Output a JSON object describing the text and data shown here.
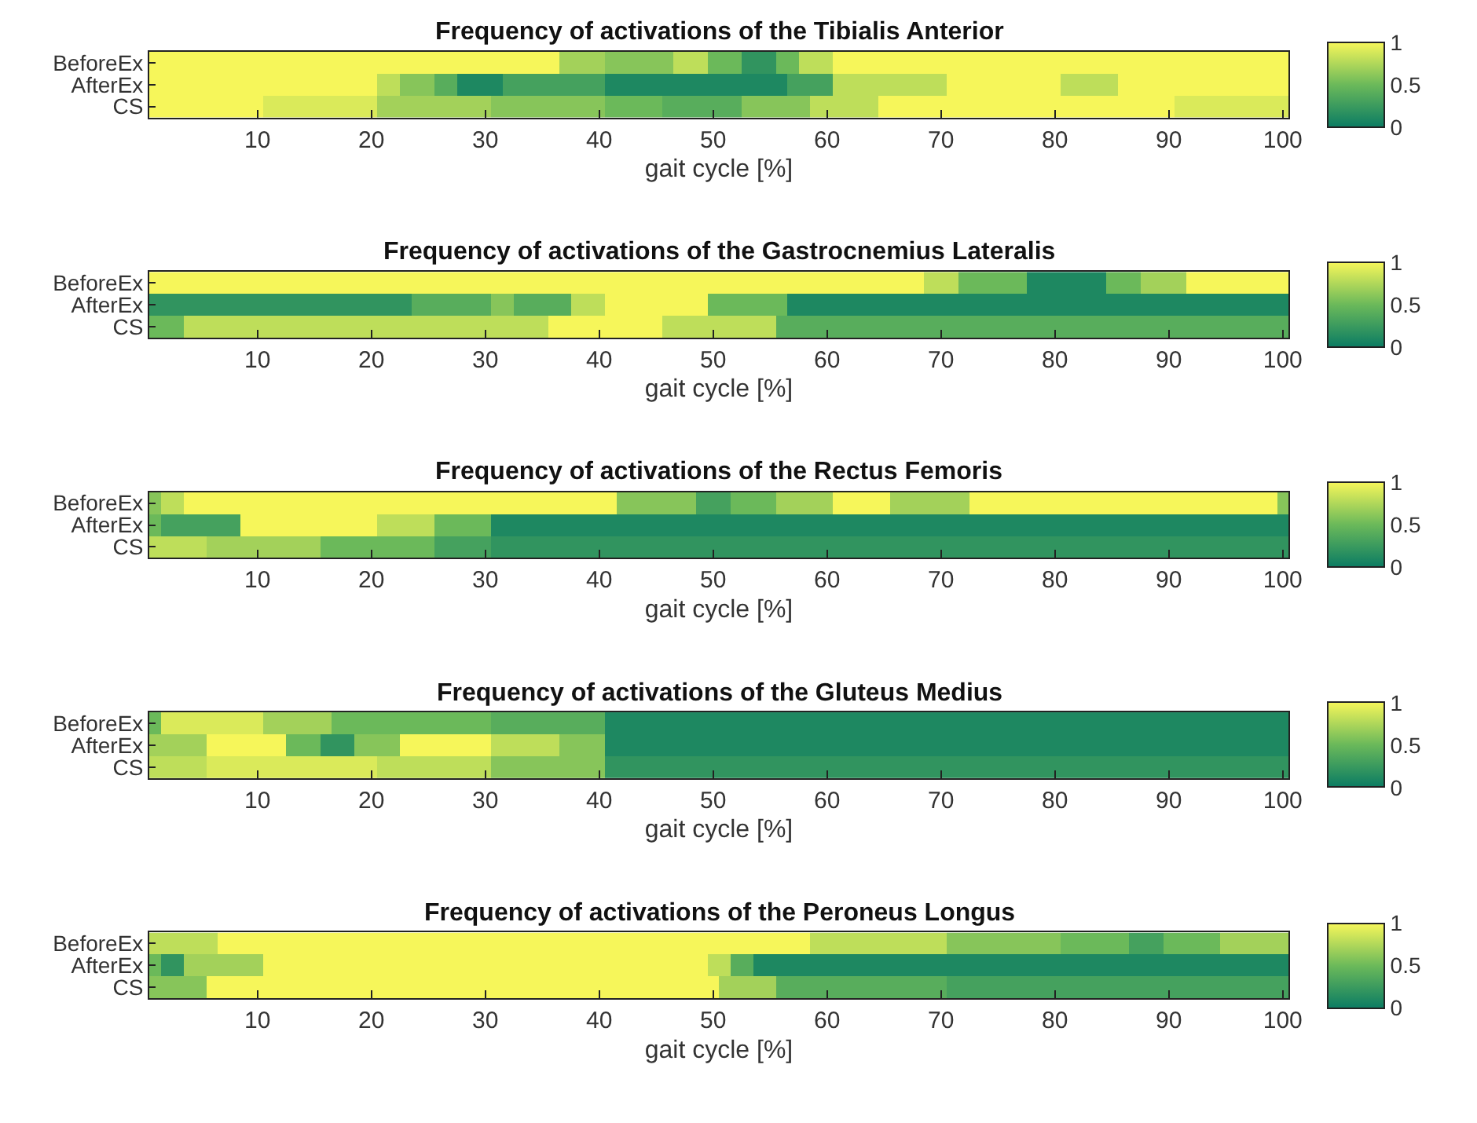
{
  "chart_data": [
    {
      "type": "heatmap",
      "title": "Frequency of activations of the Tibialis Anterior",
      "xlabel": "gait cycle [%]",
      "x": [
        1,
        2,
        3,
        4,
        5,
        6,
        7,
        8,
        9,
        10,
        11,
        12,
        13,
        14,
        15,
        16,
        17,
        18,
        19,
        20,
        21,
        22,
        23,
        24,
        25,
        26,
        27,
        28,
        29,
        30,
        31,
        32,
        33,
        34,
        35,
        36,
        37,
        38,
        39,
        40,
        41,
        42,
        43,
        44,
        45,
        46,
        47,
        48,
        49,
        50,
        51,
        52,
        53,
        54,
        55,
        56,
        57,
        58,
        59,
        60,
        61,
        62,
        63,
        64,
        65,
        66,
        67,
        68,
        69,
        70,
        71,
        72,
        73,
        74,
        75,
        76,
        77,
        78,
        79,
        80,
        81,
        82,
        83,
        84,
        85,
        86,
        87,
        88,
        89,
        90,
        91,
        92,
        93,
        94,
        95,
        96,
        97,
        98,
        99,
        100
      ],
      "y_categories": [
        "BeforeEx",
        "AfterEx",
        "CS"
      ],
      "cells": [
        [
          1,
          1,
          1,
          1,
          1,
          1,
          1,
          1,
          1,
          1,
          1,
          1,
          1,
          1,
          1,
          1,
          1,
          1,
          1,
          1,
          1,
          1,
          1,
          1,
          1,
          1,
          1,
          1,
          1,
          1,
          1,
          1,
          1,
          1,
          1,
          1,
          0.7,
          0.7,
          0.7,
          0.7,
          0.6,
          0.6,
          0.6,
          0.6,
          0.6,
          0.6,
          0.8,
          0.8,
          0.8,
          0.5,
          0.5,
          0.5,
          0.2,
          0.2,
          0.2,
          0.5,
          0.5,
          0.8,
          0.8,
          0.8,
          1,
          1,
          1,
          1,
          1,
          1,
          1,
          1,
          1,
          1,
          1,
          1,
          1,
          1,
          1,
          1,
          1,
          1,
          1,
          1,
          1,
          1,
          1,
          1,
          1,
          1,
          1,
          1,
          1,
          1,
          1,
          1,
          1,
          1,
          1,
          1,
          1,
          1,
          1,
          1
        ],
        [
          1,
          1,
          1,
          1,
          1,
          1,
          1,
          1,
          1,
          1,
          1,
          1,
          1,
          1,
          1,
          1,
          1,
          1,
          1,
          1,
          0.8,
          0.8,
          0.6,
          0.6,
          0.6,
          0.4,
          0.4,
          0.1,
          0.1,
          0.1,
          0.1,
          0.3,
          0.3,
          0.3,
          0.3,
          0.3,
          0.3,
          0.3,
          0.3,
          0.3,
          0.1,
          0.1,
          0.1,
          0.1,
          0.1,
          0.1,
          0.1,
          0.1,
          0.1,
          0.1,
          0.1,
          0.1,
          0.1,
          0.1,
          0.1,
          0.1,
          0.3,
          0.3,
          0.3,
          0.3,
          0.8,
          0.8,
          0.8,
          0.8,
          0.8,
          0.8,
          0.8,
          0.8,
          0.8,
          0.8,
          1,
          1,
          1,
          1,
          1,
          1,
          1,
          1,
          1,
          1,
          0.8,
          0.8,
          0.8,
          0.8,
          0.8,
          1,
          1,
          1,
          1,
          1,
          1,
          1,
          1,
          1,
          1,
          1,
          1,
          1,
          1,
          1
        ],
        [
          1,
          1,
          1,
          1,
          1,
          1,
          1,
          1,
          1,
          1,
          0.9,
          0.9,
          0.9,
          0.9,
          0.9,
          0.9,
          0.9,
          0.9,
          0.9,
          0.9,
          0.7,
          0.7,
          0.7,
          0.7,
          0.7,
          0.7,
          0.7,
          0.7,
          0.7,
          0.7,
          0.6,
          0.6,
          0.6,
          0.6,
          0.6,
          0.6,
          0.6,
          0.6,
          0.6,
          0.6,
          0.5,
          0.5,
          0.5,
          0.5,
          0.5,
          0.4,
          0.4,
          0.4,
          0.4,
          0.4,
          0.4,
          0.4,
          0.6,
          0.6,
          0.6,
          0.6,
          0.6,
          0.6,
          0.8,
          0.8,
          0.8,
          0.8,
          0.8,
          0.8,
          1,
          1,
          1,
          1,
          1,
          1,
          1,
          1,
          1,
          1,
          1,
          1,
          1,
          1,
          1,
          1,
          1,
          1,
          1,
          1,
          1,
          1,
          1,
          1,
          1,
          1,
          0.9,
          0.9,
          0.9,
          0.9,
          0.9,
          0.9,
          0.9,
          0.9,
          0.9,
          0.9
        ]
      ],
      "xlim": [
        0.5,
        100.5
      ],
      "xticks": [
        10,
        20,
        30,
        40,
        50,
        60,
        70,
        80,
        90,
        100
      ],
      "clim": [
        0,
        1
      ],
      "cticks": [
        0,
        0.5,
        1
      ]
    },
    {
      "type": "heatmap",
      "title": "Frequency of activations of the Gastrocnemius Lateralis",
      "xlabel": "gait cycle [%]",
      "x": [
        1,
        2,
        3,
        4,
        5,
        6,
        7,
        8,
        9,
        10,
        11,
        12,
        13,
        14,
        15,
        16,
        17,
        18,
        19,
        20,
        21,
        22,
        23,
        24,
        25,
        26,
        27,
        28,
        29,
        30,
        31,
        32,
        33,
        34,
        35,
        36,
        37,
        38,
        39,
        40,
        41,
        42,
        43,
        44,
        45,
        46,
        47,
        48,
        49,
        50,
        51,
        52,
        53,
        54,
        55,
        56,
        57,
        58,
        59,
        60,
        61,
        62,
        63,
        64,
        65,
        66,
        67,
        68,
        69,
        70,
        71,
        72,
        73,
        74,
        75,
        76,
        77,
        78,
        79,
        80,
        81,
        82,
        83,
        84,
        85,
        86,
        87,
        88,
        89,
        90,
        91,
        92,
        93,
        94,
        95,
        96,
        97,
        98,
        99,
        100
      ],
      "y_categories": [
        "BeforeEx",
        "AfterEx",
        "CS"
      ],
      "cells": [
        [
          1,
          1,
          1,
          1,
          1,
          1,
          1,
          1,
          1,
          1,
          1,
          1,
          1,
          1,
          1,
          1,
          1,
          1,
          1,
          1,
          1,
          1,
          1,
          1,
          1,
          1,
          1,
          1,
          1,
          1,
          1,
          1,
          1,
          1,
          1,
          1,
          1,
          1,
          1,
          1,
          1,
          1,
          1,
          1,
          1,
          1,
          1,
          1,
          1,
          1,
          1,
          1,
          1,
          1,
          1,
          1,
          1,
          1,
          1,
          1,
          1,
          1,
          1,
          1,
          1,
          1,
          1,
          1,
          0.8,
          0.8,
          0.8,
          0.5,
          0.5,
          0.5,
          0.5,
          0.5,
          0.5,
          0.1,
          0.1,
          0.1,
          0.1,
          0.1,
          0.1,
          0.1,
          0.5,
          0.5,
          0.5,
          0.7,
          0.7,
          0.7,
          0.7,
          1,
          1,
          1,
          1,
          1,
          1,
          1,
          1,
          1
        ],
        [
          0.2,
          0.2,
          0.2,
          0.2,
          0.2,
          0.2,
          0.2,
          0.2,
          0.2,
          0.2,
          0.2,
          0.2,
          0.2,
          0.2,
          0.2,
          0.2,
          0.2,
          0.2,
          0.2,
          0.2,
          0.2,
          0.2,
          0.2,
          0.4,
          0.4,
          0.4,
          0.4,
          0.4,
          0.4,
          0.4,
          0.6,
          0.6,
          0.4,
          0.4,
          0.4,
          0.4,
          0.4,
          0.8,
          0.8,
          0.8,
          1,
          1,
          1,
          1,
          1,
          1,
          1,
          1,
          1,
          0.5,
          0.5,
          0.5,
          0.5,
          0.5,
          0.5,
          0.5,
          0.1,
          0.1,
          0.1,
          0.1,
          0.1,
          0.1,
          0.1,
          0.1,
          0.1,
          0.1,
          0.1,
          0.1,
          0.1,
          0.1,
          0.1,
          0.1,
          0.1,
          0.1,
          0.1,
          0.1,
          0.1,
          0.1,
          0.1,
          0.1,
          0.1,
          0.1,
          0.1,
          0.1,
          0.1,
          0.1,
          0.1,
          0.1,
          0.1,
          0.1,
          0.1,
          0.1,
          0.1,
          0.1,
          0.1,
          0.1,
          0.1,
          0.1,
          0.1,
          0.1
        ],
        [
          0.5,
          0.5,
          0.5,
          0.8,
          0.8,
          0.8,
          0.8,
          0.8,
          0.8,
          0.8,
          0.8,
          0.8,
          0.8,
          0.8,
          0.8,
          0.8,
          0.8,
          0.8,
          0.8,
          0.8,
          0.8,
          0.8,
          0.8,
          0.8,
          0.8,
          0.8,
          0.8,
          0.8,
          0.8,
          0.8,
          0.8,
          0.8,
          0.8,
          0.8,
          0.8,
          1,
          1,
          1,
          1,
          1,
          1,
          1,
          1,
          1,
          1,
          0.8,
          0.8,
          0.8,
          0.8,
          0.8,
          0.8,
          0.8,
          0.8,
          0.8,
          0.8,
          0.4,
          0.4,
          0.4,
          0.4,
          0.4,
          0.4,
          0.4,
          0.4,
          0.4,
          0.4,
          0.4,
          0.4,
          0.4,
          0.4,
          0.4,
          0.4,
          0.4,
          0.4,
          0.4,
          0.4,
          0.4,
          0.4,
          0.4,
          0.4,
          0.4,
          0.4,
          0.4,
          0.4,
          0.4,
          0.4,
          0.4,
          0.4,
          0.4,
          0.4,
          0.4,
          0.4,
          0.4,
          0.4,
          0.4,
          0.4,
          0.4,
          0.4,
          0.4,
          0.4,
          0.4
        ]
      ],
      "xlim": [
        0.5,
        100.5
      ],
      "xticks": [
        10,
        20,
        30,
        40,
        50,
        60,
        70,
        80,
        90,
        100
      ],
      "clim": [
        0,
        1
      ],
      "cticks": [
        0,
        0.5,
        1
      ]
    },
    {
      "type": "heatmap",
      "title": "Frequency of activations of the Rectus Femoris",
      "xlabel": "gait cycle [%]",
      "x": [
        1,
        2,
        3,
        4,
        5,
        6,
        7,
        8,
        9,
        10,
        11,
        12,
        13,
        14,
        15,
        16,
        17,
        18,
        19,
        20,
        21,
        22,
        23,
        24,
        25,
        26,
        27,
        28,
        29,
        30,
        31,
        32,
        33,
        34,
        35,
        36,
        37,
        38,
        39,
        40,
        41,
        42,
        43,
        44,
        45,
        46,
        47,
        48,
        49,
        50,
        51,
        52,
        53,
        54,
        55,
        56,
        57,
        58,
        59,
        60,
        61,
        62,
        63,
        64,
        65,
        66,
        67,
        68,
        69,
        70,
        71,
        72,
        73,
        74,
        75,
        76,
        77,
        78,
        79,
        80,
        81,
        82,
        83,
        84,
        85,
        86,
        87,
        88,
        89,
        90,
        91,
        92,
        93,
        94,
        95,
        96,
        97,
        98,
        99,
        100
      ],
      "y_categories": [
        "BeforeEx",
        "AfterEx",
        "CS"
      ],
      "cells": [
        [
          0.6,
          0.8,
          0.8,
          1,
          1,
          1,
          1,
          1,
          1,
          1,
          1,
          1,
          1,
          1,
          1,
          1,
          1,
          1,
          1,
          1,
          1,
          1,
          1,
          1,
          1,
          1,
          1,
          1,
          1,
          1,
          1,
          1,
          1,
          1,
          1,
          1,
          1,
          1,
          1,
          1,
          1,
          0.6,
          0.6,
          0.6,
          0.6,
          0.6,
          0.6,
          0.6,
          0.3,
          0.3,
          0.3,
          0.5,
          0.5,
          0.5,
          0.5,
          0.7,
          0.7,
          0.7,
          0.7,
          0.7,
          1,
          1,
          1,
          1,
          1,
          0.7,
          0.7,
          0.7,
          0.7,
          0.7,
          0.7,
          0.7,
          1,
          1,
          1,
          1,
          1,
          1,
          1,
          1,
          1,
          1,
          1,
          1,
          1,
          1,
          1,
          1,
          1,
          1,
          1,
          1,
          1,
          1,
          1,
          1,
          1,
          1,
          1,
          0.6
        ],
        [
          0.5,
          0.3,
          0.3,
          0.3,
          0.3,
          0.3,
          0.3,
          0.3,
          1,
          1,
          1,
          1,
          1,
          1,
          1,
          1,
          1,
          1,
          1,
          1,
          0.8,
          0.8,
          0.8,
          0.8,
          0.8,
          0.5,
          0.5,
          0.5,
          0.5,
          0.5,
          0.1,
          0.1,
          0.1,
          0.1,
          0.1,
          0.1,
          0.1,
          0.1,
          0.1,
          0.1,
          0.1,
          0.1,
          0.1,
          0.1,
          0.1,
          0.1,
          0.1,
          0.1,
          0.1,
          0.1,
          0.1,
          0.1,
          0.1,
          0.1,
          0.1,
          0.1,
          0.1,
          0.1,
          0.1,
          0.1,
          0.1,
          0.1,
          0.1,
          0.1,
          0.1,
          0.1,
          0.1,
          0.1,
          0.1,
          0.1,
          0.1,
          0.1,
          0.1,
          0.1,
          0.1,
          0.1,
          0.1,
          0.1,
          0.1,
          0.1,
          0.1,
          0.1,
          0.1,
          0.1,
          0.1,
          0.1,
          0.1,
          0.1,
          0.1,
          0.1,
          0.1,
          0.1,
          0.1,
          0.1,
          0.1,
          0.1,
          0.1,
          0.1,
          0.1,
          0.1
        ],
        [
          0.8,
          0.8,
          0.8,
          0.8,
          0.8,
          0.7,
          0.7,
          0.7,
          0.7,
          0.7,
          0.7,
          0.7,
          0.7,
          0.7,
          0.7,
          0.5,
          0.5,
          0.5,
          0.5,
          0.5,
          0.5,
          0.5,
          0.5,
          0.5,
          0.5,
          0.3,
          0.3,
          0.3,
          0.3,
          0.3,
          0.2,
          0.2,
          0.2,
          0.2,
          0.2,
          0.2,
          0.2,
          0.2,
          0.2,
          0.2,
          0.2,
          0.2,
          0.2,
          0.2,
          0.2,
          0.2,
          0.2,
          0.2,
          0.2,
          0.2,
          0.2,
          0.2,
          0.2,
          0.2,
          0.2,
          0.2,
          0.2,
          0.2,
          0.2,
          0.2,
          0.2,
          0.2,
          0.2,
          0.2,
          0.2,
          0.2,
          0.2,
          0.2,
          0.2,
          0.2,
          0.2,
          0.2,
          0.2,
          0.2,
          0.2,
          0.2,
          0.2,
          0.2,
          0.2,
          0.2,
          0.2,
          0.2,
          0.2,
          0.2,
          0.2,
          0.2,
          0.2,
          0.2,
          0.2,
          0.2,
          0.2,
          0.2,
          0.2,
          0.2,
          0.2,
          0.2,
          0.2,
          0.2,
          0.2,
          0.2
        ]
      ],
      "xlim": [
        0.5,
        100.5
      ],
      "xticks": [
        10,
        20,
        30,
        40,
        50,
        60,
        70,
        80,
        90,
        100
      ],
      "clim": [
        0,
        1
      ],
      "cticks": [
        0,
        0.5,
        1
      ]
    },
    {
      "type": "heatmap",
      "title": "Frequency of activations of the Gluteus Medius",
      "xlabel": "gait cycle [%]",
      "x": [
        1,
        2,
        3,
        4,
        5,
        6,
        7,
        8,
        9,
        10,
        11,
        12,
        13,
        14,
        15,
        16,
        17,
        18,
        19,
        20,
        21,
        22,
        23,
        24,
        25,
        26,
        27,
        28,
        29,
        30,
        31,
        32,
        33,
        34,
        35,
        36,
        37,
        38,
        39,
        40,
        41,
        42,
        43,
        44,
        45,
        46,
        47,
        48,
        49,
        50,
        51,
        52,
        53,
        54,
        55,
        56,
        57,
        58,
        59,
        60,
        61,
        62,
        63,
        64,
        65,
        66,
        67,
        68,
        69,
        70,
        71,
        72,
        73,
        74,
        75,
        76,
        77,
        78,
        79,
        80,
        81,
        82,
        83,
        84,
        85,
        86,
        87,
        88,
        89,
        90,
        91,
        92,
        93,
        94,
        95,
        96,
        97,
        98,
        99,
        100
      ],
      "y_categories": [
        "BeforeEx",
        "AfterEx",
        "CS"
      ],
      "cells": [
        [
          0.5,
          0.9,
          0.9,
          0.9,
          0.9,
          0.9,
          0.9,
          0.9,
          0.9,
          0.9,
          0.7,
          0.7,
          0.7,
          0.7,
          0.7,
          0.7,
          0.5,
          0.5,
          0.5,
          0.5,
          0.5,
          0.5,
          0.5,
          0.5,
          0.5,
          0.5,
          0.5,
          0.5,
          0.5,
          0.5,
          0.4,
          0.4,
          0.4,
          0.4,
          0.4,
          0.4,
          0.4,
          0.4,
          0.4,
          0.4,
          0.1,
          0.1,
          0.1,
          0.1,
          0.1,
          0.1,
          0.1,
          0.1,
          0.1,
          0.1,
          0.1,
          0.1,
          0.1,
          0.1,
          0.1,
          0.1,
          0.1,
          0.1,
          0.1,
          0.1,
          0.1,
          0.1,
          0.1,
          0.1,
          0.1,
          0.1,
          0.1,
          0.1,
          0.1,
          0.1,
          0.1,
          0.1,
          0.1,
          0.1,
          0.1,
          0.1,
          0.1,
          0.1,
          0.1,
          0.1,
          0.1,
          0.1,
          0.1,
          0.1,
          0.1,
          0.1,
          0.1,
          0.1,
          0.1,
          0.1,
          0.1,
          0.1,
          0.1,
          0.1,
          0.1,
          0.1,
          0.1,
          0.1,
          0.1,
          0.1
        ],
        [
          0.7,
          0.7,
          0.7,
          0.7,
          0.7,
          1,
          1,
          1,
          1,
          1,
          1,
          1,
          0.5,
          0.5,
          0.5,
          0.2,
          0.2,
          0.2,
          0.6,
          0.6,
          0.6,
          0.6,
          1,
          1,
          1,
          1,
          1,
          1,
          1,
          1,
          0.8,
          0.8,
          0.8,
          0.8,
          0.8,
          0.8,
          0.6,
          0.6,
          0.6,
          0.6,
          0.1,
          0.1,
          0.1,
          0.1,
          0.1,
          0.1,
          0.1,
          0.1,
          0.1,
          0.1,
          0.1,
          0.1,
          0.1,
          0.1,
          0.1,
          0.1,
          0.1,
          0.1,
          0.1,
          0.1,
          0.1,
          0.1,
          0.1,
          0.1,
          0.1,
          0.1,
          0.1,
          0.1,
          0.1,
          0.1,
          0.1,
          0.1,
          0.1,
          0.1,
          0.1,
          0.1,
          0.1,
          0.1,
          0.1,
          0.1,
          0.1,
          0.1,
          0.1,
          0.1,
          0.1,
          0.1,
          0.1,
          0.1,
          0.1,
          0.1,
          0.1,
          0.1,
          0.1,
          0.1,
          0.1,
          0.1,
          0.1,
          0.1,
          0.1,
          0.1
        ],
        [
          0.8,
          0.8,
          0.8,
          0.8,
          0.8,
          0.9,
          0.9,
          0.9,
          0.9,
          0.9,
          0.9,
          0.9,
          0.9,
          0.9,
          0.9,
          0.9,
          0.9,
          0.9,
          0.9,
          0.9,
          0.8,
          0.8,
          0.8,
          0.8,
          0.8,
          0.8,
          0.8,
          0.8,
          0.8,
          0.8,
          0.6,
          0.6,
          0.6,
          0.6,
          0.6,
          0.6,
          0.6,
          0.6,
          0.6,
          0.6,
          0.2,
          0.2,
          0.2,
          0.2,
          0.2,
          0.2,
          0.2,
          0.2,
          0.2,
          0.2,
          0.2,
          0.2,
          0.2,
          0.2,
          0.2,
          0.2,
          0.2,
          0.2,
          0.2,
          0.2,
          0.2,
          0.2,
          0.2,
          0.2,
          0.2,
          0.2,
          0.2,
          0.2,
          0.2,
          0.2,
          0.2,
          0.2,
          0.2,
          0.2,
          0.2,
          0.2,
          0.2,
          0.2,
          0.2,
          0.2,
          0.2,
          0.2,
          0.2,
          0.2,
          0.2,
          0.2,
          0.2,
          0.2,
          0.2,
          0.2,
          0.2,
          0.2,
          0.2,
          0.2,
          0.2,
          0.2,
          0.2,
          0.2,
          0.2,
          0.2
        ]
      ],
      "xlim": [
        0.5,
        100.5
      ],
      "xticks": [
        10,
        20,
        30,
        40,
        50,
        60,
        70,
        80,
        90,
        100
      ],
      "clim": [
        0,
        1
      ],
      "cticks": [
        0,
        0.5,
        1
      ]
    },
    {
      "type": "heatmap",
      "title": "Frequency of activations of the Peroneus Longus",
      "xlabel": "gait cycle [%]",
      "x": [
        1,
        2,
        3,
        4,
        5,
        6,
        7,
        8,
        9,
        10,
        11,
        12,
        13,
        14,
        15,
        16,
        17,
        18,
        19,
        20,
        21,
        22,
        23,
        24,
        25,
        26,
        27,
        28,
        29,
        30,
        31,
        32,
        33,
        34,
        35,
        36,
        37,
        38,
        39,
        40,
        41,
        42,
        43,
        44,
        45,
        46,
        47,
        48,
        49,
        50,
        51,
        52,
        53,
        54,
        55,
        56,
        57,
        58,
        59,
        60,
        61,
        62,
        63,
        64,
        65,
        66,
        67,
        68,
        69,
        70,
        71,
        72,
        73,
        74,
        75,
        76,
        77,
        78,
        79,
        80,
        81,
        82,
        83,
        84,
        85,
        86,
        87,
        88,
        89,
        90,
        91,
        92,
        93,
        94,
        95,
        96,
        97,
        98,
        99,
        100
      ],
      "y_categories": [
        "BeforeEx",
        "AfterEx",
        "CS"
      ],
      "cells": [
        [
          0.8,
          0.8,
          0.8,
          0.8,
          0.8,
          0.8,
          1,
          1,
          1,
          1,
          1,
          1,
          1,
          1,
          1,
          1,
          1,
          1,
          1,
          1,
          1,
          1,
          1,
          1,
          1,
          1,
          1,
          1,
          1,
          1,
          1,
          1,
          1,
          1,
          1,
          1,
          1,
          1,
          1,
          1,
          1,
          1,
          1,
          1,
          1,
          1,
          1,
          1,
          1,
          1,
          1,
          1,
          1,
          1,
          1,
          1,
          1,
          1,
          0.8,
          0.8,
          0.8,
          0.8,
          0.8,
          0.8,
          0.8,
          0.8,
          0.8,
          0.8,
          0.8,
          0.8,
          0.6,
          0.6,
          0.6,
          0.6,
          0.6,
          0.6,
          0.6,
          0.6,
          0.6,
          0.6,
          0.5,
          0.5,
          0.5,
          0.5,
          0.5,
          0.5,
          0.3,
          0.3,
          0.3,
          0.5,
          0.5,
          0.5,
          0.5,
          0.5,
          0.7,
          0.7,
          0.7,
          0.7,
          0.7,
          0.7
        ],
        [
          0.5,
          0.2,
          0.2,
          0.7,
          0.7,
          0.7,
          0.7,
          0.7,
          0.7,
          0.7,
          1,
          1,
          1,
          1,
          1,
          1,
          1,
          1,
          1,
          1,
          1,
          1,
          1,
          1,
          1,
          1,
          1,
          1,
          1,
          1,
          1,
          1,
          1,
          1,
          1,
          1,
          1,
          1,
          1,
          1,
          1,
          1,
          1,
          1,
          1,
          1,
          1,
          1,
          1,
          0.8,
          0.8,
          0.4,
          0.4,
          0.1,
          0.1,
          0.1,
          0.1,
          0.1,
          0.1,
          0.1,
          0.1,
          0.1,
          0.1,
          0.1,
          0.1,
          0.1,
          0.1,
          0.1,
          0.1,
          0.1,
          0.1,
          0.1,
          0.1,
          0.1,
          0.1,
          0.1,
          0.1,
          0.1,
          0.1,
          0.1,
          0.1,
          0.1,
          0.1,
          0.1,
          0.1,
          0.1,
          0.1,
          0.1,
          0.1,
          0.1,
          0.1,
          0.1,
          0.1,
          0.1,
          0.1,
          0.1,
          0.1,
          0.1,
          0.1,
          0.1
        ],
        [
          0.6,
          0.6,
          0.6,
          0.6,
          0.6,
          1,
          1,
          1,
          1,
          1,
          1,
          1,
          1,
          1,
          1,
          1,
          1,
          1,
          1,
          1,
          1,
          1,
          1,
          1,
          1,
          1,
          1,
          1,
          1,
          1,
          1,
          1,
          1,
          1,
          1,
          1,
          1,
          1,
          1,
          1,
          1,
          1,
          1,
          1,
          1,
          1,
          1,
          1,
          1,
          1,
          0.7,
          0.7,
          0.7,
          0.7,
          0.7,
          0.4,
          0.4,
          0.4,
          0.4,
          0.4,
          0.4,
          0.4,
          0.4,
          0.4,
          0.4,
          0.4,
          0.4,
          0.4,
          0.4,
          0.4,
          0.3,
          0.3,
          0.3,
          0.3,
          0.3,
          0.3,
          0.3,
          0.3,
          0.3,
          0.3,
          0.3,
          0.3,
          0.3,
          0.3,
          0.3,
          0.3,
          0.3,
          0.3,
          0.3,
          0.3,
          0.3,
          0.3,
          0.3,
          0.3,
          0.3,
          0.3,
          0.3,
          0.3,
          0.3,
          0.3
        ]
      ],
      "xlim": [
        0.5,
        100.5
      ],
      "xticks": [
        10,
        20,
        30,
        40,
        50,
        60,
        70,
        80,
        90,
        100
      ],
      "clim": [
        0,
        1
      ],
      "cticks": [
        0,
        0.5,
        1
      ]
    }
  ]
}
